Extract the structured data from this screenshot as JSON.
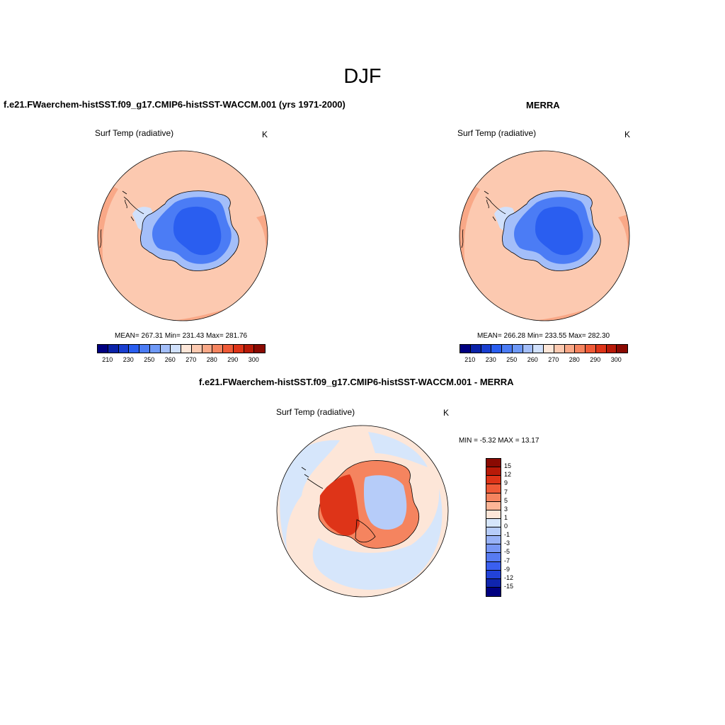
{
  "figure": {
    "title": "DJF"
  },
  "panels": {
    "model": {
      "title": "f.e21.FWaerchem-histSST.f09_g17.CMIP6-histSST-WACCM.001 (yrs 1971-2000)",
      "variable": "Surf Temp (radiative)",
      "units": "K",
      "stats": "MEAN= 267.31  Min= 231.43  Max= 281.76"
    },
    "obs": {
      "title": "MERRA",
      "variable": "Surf Temp (radiative)",
      "units": "K",
      "stats": "MEAN= 266.28  Min= 233.55  Max= 282.30"
    },
    "diff": {
      "title": "f.e21.FWaerchem-histSST.f09_g17.CMIP6-histSST-WACCM.001 - MERRA",
      "variable": "Surf Temp (radiative)",
      "units": "K",
      "stats": "MIN =  -5.32 MAX =  13.17"
    }
  },
  "abs_colorbar": {
    "colors": [
      "#000080",
      "#0a22a8",
      "#1a3fd0",
      "#2a5ef0",
      "#4b7cf5",
      "#6e99f7",
      "#a3bef9",
      "#d0e0fb",
      "#fde6d8",
      "#fcc9b0",
      "#f9a887",
      "#f5845f",
      "#ef5a37",
      "#de3418",
      "#b81a08",
      "#8a0a02"
    ],
    "tick_labels": [
      "210",
      "230",
      "250",
      "260",
      "270",
      "280",
      "290",
      "300"
    ]
  },
  "diff_colorbar": {
    "colors": [
      "#8a0a02",
      "#b81a08",
      "#de3418",
      "#ef5a37",
      "#f5845f",
      "#fcb596",
      "#fde6d8",
      "#d6e6fb",
      "#b6ccf9",
      "#98b2f7",
      "#7897f5",
      "#577bf2",
      "#3a5ff0",
      "#2242d8",
      "#0f25ae",
      "#000080"
    ],
    "tick_labels": [
      "15",
      "12",
      "9",
      "7",
      "5",
      "3",
      "1",
      "0",
      "-1",
      "-3",
      "-5",
      "-7",
      "-9",
      "-12",
      "-15"
    ]
  },
  "map_colors": {
    "ocean_warm": "#fcc9b0",
    "ocean_warmer": "#f9a887",
    "ice_dark": "#2a5ef0",
    "ice_mid": "#4b7cf5",
    "ice_light": "#a3bef9",
    "ice_pale": "#d0e0fb",
    "diff_ocean": "#d6e6fb",
    "diff_pos_light": "#fde6d8",
    "diff_pos": "#f5845f",
    "diff_pos_strong": "#de3418",
    "diff_neg": "#b6ccf9"
  }
}
